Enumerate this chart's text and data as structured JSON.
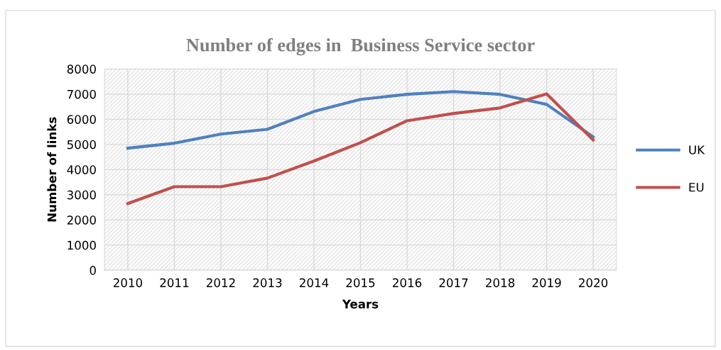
{
  "chart_data": {
    "type": "line",
    "title": "Number of edges in  Business Service sector",
    "xlabel": "Years",
    "ylabel": "Number of links",
    "categories": [
      "2010",
      "2011",
      "2012",
      "2013",
      "2014",
      "2015",
      "2016",
      "2017",
      "2018",
      "2019",
      "2020"
    ],
    "series": [
      {
        "name": "UK",
        "color": "#4f81bd",
        "values": [
          4850,
          5050,
          5410,
          5600,
          6310,
          6790,
          6990,
          7100,
          6990,
          6590,
          5300
        ]
      },
      {
        "name": "EU",
        "color": "#c0504d",
        "values": [
          2650,
          3320,
          3320,
          3660,
          4340,
          5070,
          5940,
          6230,
          6450,
          7010,
          5180
        ]
      }
    ],
    "ylim": [
      0,
      8000
    ],
    "yticks": [
      0,
      1000,
      2000,
      3000,
      4000,
      5000,
      6000,
      7000,
      8000
    ],
    "grid": true,
    "legend": "right",
    "marker": "none",
    "line_style": "solid"
  }
}
